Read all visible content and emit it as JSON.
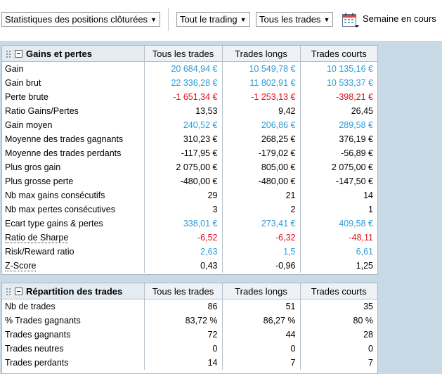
{
  "toolbar": {
    "stats_select": "Statistiques des positions clôturées",
    "trading_select": "Tout le trading",
    "trades_select": "Tous les trades",
    "period_label": "Semaine en cours"
  },
  "columns": [
    "Tous les trades",
    "Trades longs",
    "Trades courts"
  ],
  "gains": {
    "title": "Gains et pertes",
    "rows": [
      {
        "label": "Gain",
        "values": [
          "20 684,94 €",
          "10 549,78 €",
          "10 135,16 €"
        ],
        "color": "blue"
      },
      {
        "label": "Gain brut",
        "values": [
          "22 336,28 €",
          "11 802,91 €",
          "10 533,37 €"
        ],
        "color": "blue"
      },
      {
        "label": "Perte brute",
        "values": [
          "-1 651,34 €",
          "-1 253,13 €",
          "-398,21 €"
        ],
        "color": "red"
      },
      {
        "label": "Ratio Gains/Pertes",
        "values": [
          "13,53",
          "9,42",
          "26,45"
        ],
        "color": ""
      },
      {
        "label": "Gain moyen",
        "values": [
          "240,52 €",
          "206,86 €",
          "289,58 €"
        ],
        "color": "blue"
      },
      {
        "label": "Moyenne des trades gagnants",
        "values": [
          "310,23 €",
          "268,25 €",
          "376,19 €"
        ],
        "color": ""
      },
      {
        "label": "Moyenne des trades perdants",
        "values": [
          "-117,95 €",
          "-179,02 €",
          "-56,89 €"
        ],
        "color": ""
      },
      {
        "label": "Plus gros gain",
        "values": [
          "2 075,00 €",
          "805,00 €",
          "2 075,00 €"
        ],
        "color": ""
      },
      {
        "label": "Plus grosse perte",
        "values": [
          "-480,00 €",
          "-480,00 €",
          "-147,50 €"
        ],
        "color": ""
      },
      {
        "label": "Nb max gains consécutifs",
        "values": [
          "29",
          "21",
          "14"
        ],
        "color": ""
      },
      {
        "label": "Nb max pertes consécutives",
        "values": [
          "3",
          "2",
          "1"
        ],
        "color": ""
      },
      {
        "label": "Ecart type gains & pertes",
        "values": [
          "338,01 €",
          "273,41 €",
          "409,58 €"
        ],
        "color": "blue"
      },
      {
        "label": "Ratio de Sharpe",
        "values": [
          "-6,52",
          "-6,32",
          "-48,11"
        ],
        "color": "red",
        "dotted": true
      },
      {
        "label": "Risk/Reward ratio",
        "values": [
          "2,63",
          "1,5",
          "6,61"
        ],
        "color": "blue"
      },
      {
        "label": "Z-Score",
        "values": [
          "0,43",
          "-0,96",
          "1,25"
        ],
        "color": "",
        "dotted": true
      }
    ]
  },
  "repartition": {
    "title": "Répartition des trades",
    "rows": [
      {
        "label": "Nb de trades",
        "values": [
          "86",
          "51",
          "35"
        ],
        "color": ""
      },
      {
        "label": "% Trades gagnants",
        "values": [
          "83,72 %",
          "86,27 %",
          "80 %"
        ],
        "color": ""
      },
      {
        "label": "Trades gagnants",
        "values": [
          "72",
          "44",
          "28"
        ],
        "color": ""
      },
      {
        "label": "Trades neutres",
        "values": [
          "0",
          "0",
          "0"
        ],
        "color": ""
      },
      {
        "label": "Trades perdants",
        "values": [
          "14",
          "7",
          "7"
        ],
        "color": ""
      }
    ]
  }
}
